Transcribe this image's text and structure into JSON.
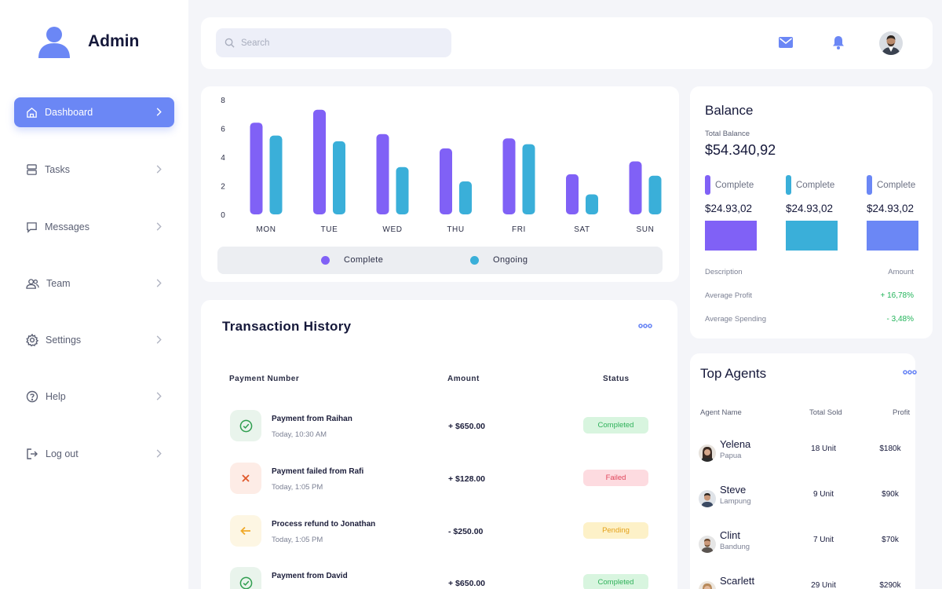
{
  "brand": {
    "name": "Admin"
  },
  "sidebar": {
    "items": [
      {
        "label": "Dashboard",
        "icon": "home-icon",
        "active": true
      },
      {
        "label": "Tasks",
        "icon": "tasks-icon"
      },
      {
        "label": "Messages",
        "icon": "message-icon"
      },
      {
        "label": "Team",
        "icon": "team-icon"
      },
      {
        "label": "Settings",
        "icon": "gear-icon"
      },
      {
        "label": "Help",
        "icon": "help-icon"
      },
      {
        "label": "Log out",
        "icon": "logout-icon"
      }
    ]
  },
  "header": {
    "search_placeholder": "Search",
    "icons": [
      "mail-icon",
      "bell-icon",
      "avatar"
    ]
  },
  "chart_data": {
    "type": "bar",
    "categories": [
      "MON",
      "TUE",
      "WED",
      "THU",
      "FRI",
      "SAT",
      "SUN"
    ],
    "series": [
      {
        "name": "Complete",
        "values": [
          6.4,
          7.3,
          5.6,
          4.6,
          5.3,
          2.8,
          3.7
        ],
        "color": "#8061f6"
      },
      {
        "name": "Ongoing",
        "values": [
          5.5,
          5.1,
          3.3,
          2.3,
          4.9,
          1.4,
          2.7
        ],
        "color": "#3aafd9"
      }
    ],
    "yticks": [
      "0",
      "2",
      "4",
      "6",
      "8"
    ],
    "ylim": [
      0,
      8
    ],
    "grid": false,
    "legend_position": "bottom",
    "title": "",
    "xlabel": "",
    "ylabel": ""
  },
  "transactions": {
    "title": "Transaction History",
    "headers": {
      "payment": "Payment Number",
      "amount": "Amount",
      "status": "Status"
    },
    "rows": [
      {
        "name": "Payment from Raihan",
        "time": "Today, 10:30 AM",
        "amount": "+ $650.00",
        "status": "Completed",
        "icon": "check-icon"
      },
      {
        "name": "Payment failed from Rafi",
        "time": "Today, 1:05 PM",
        "amount": "+ $128.00",
        "status": "Failed",
        "icon": "close-icon"
      },
      {
        "name": "Process refund to Jonathan",
        "time": "Today, 1:05 PM",
        "amount": "- $250.00",
        "status": "Pending",
        "icon": "arrow-left-icon"
      },
      {
        "name": "Payment from David",
        "time": "",
        "amount": "+ $650.00",
        "status": "Completed",
        "icon": "check-icon"
      }
    ]
  },
  "balance": {
    "title": "Balance",
    "total_label": "Total Balance",
    "total_value": "$54.340,92",
    "items": [
      {
        "label": "Complete",
        "value": "$24.93,02",
        "color": "#8061f6"
      },
      {
        "label": "Complete",
        "value": "$24.93,02",
        "color": "#3aafd9"
      },
      {
        "label": "Complete",
        "value": "$24.93,02",
        "color": "#6b87f5"
      }
    ],
    "description_header": "Description",
    "amount_header": "Amount",
    "rows": [
      {
        "label": "Average Profit",
        "value": "+ 16,78%"
      },
      {
        "label": "Average Spending",
        "value": "- 3,48%"
      }
    ]
  },
  "agents": {
    "title": "Top Agents",
    "headers": {
      "name": "Agent Name",
      "sold": "Total Sold",
      "profit": "Profit"
    },
    "rows": [
      {
        "name": "Yelena",
        "city": "Papua",
        "sold": "18 Unit",
        "profit": "$180k"
      },
      {
        "name": "Steve",
        "city": "Lampung",
        "sold": "9 Unit",
        "profit": "$90k"
      },
      {
        "name": "Clint",
        "city": "Bandung",
        "sold": "7 Unit",
        "profit": "$70k"
      },
      {
        "name": "Scarlett",
        "city": "",
        "sold": "29 Unit",
        "profit": "$290k"
      }
    ]
  }
}
